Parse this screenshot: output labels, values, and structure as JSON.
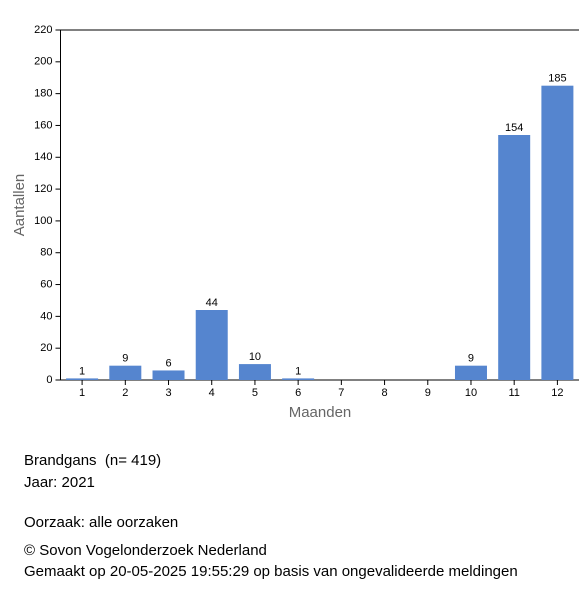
{
  "chart_data": {
    "type": "bar",
    "x_label": "Maanden",
    "y_label": "Aantallen",
    "categories": [
      "1",
      "2",
      "3",
      "4",
      "5",
      "6",
      "7",
      "8",
      "9",
      "10",
      "11",
      "12"
    ],
    "values": [
      1,
      9,
      6,
      44,
      10,
      1,
      null,
      null,
      null,
      9,
      154,
      185
    ],
    "color": "#5585cf",
    "ylim": [
      0,
      220
    ],
    "yticks": [
      0,
      20,
      40,
      60,
      80,
      100,
      120,
      140,
      160,
      180,
      200,
      220
    ]
  },
  "info": {
    "species": "Brandgans  (n= 419)",
    "year": "Jaar: 2021",
    "cause": "Oorzaak: alle oorzaken",
    "copyright": "© Sovon Vogelonderzoek Nederland",
    "made": "Gemaakt op 20-05-2025 19:55:29 op basis van ongevalideerde meldingen"
  }
}
